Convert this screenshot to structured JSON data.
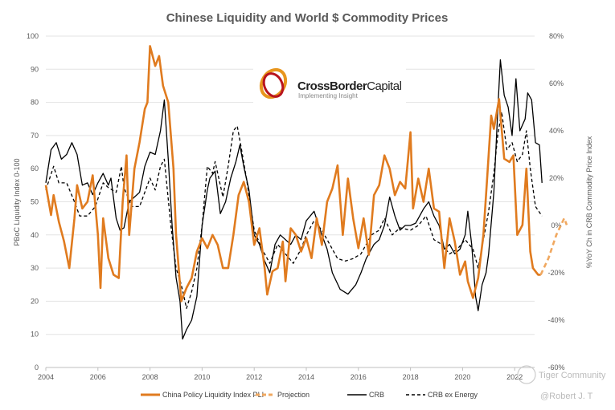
{
  "chart_data": {
    "type": "line",
    "title": "Chinese Liquidity and World $ Commodity Prices",
    "ylabel_left": "PBoC Liquidity Index 0-100",
    "ylabel_right": "%YoY Ch in CRB Commodity Price Index",
    "ylim_left": [
      0,
      100
    ],
    "ylim_right": [
      -60,
      80
    ],
    "xlim": [
      2004,
      2023.5
    ],
    "x_ticks": [
      "2004",
      "2006",
      "2008",
      "2010",
      "2012",
      "2014",
      "2016",
      "2018",
      "2020",
      "2022"
    ],
    "left_ticks": [
      "0",
      "10",
      "20",
      "30",
      "40",
      "50",
      "60",
      "70",
      "80",
      "90",
      "100"
    ],
    "right_ticks": [
      "-60%",
      "-40%",
      "-20%",
      "0%",
      "20%",
      "40%",
      "60%",
      "80%"
    ],
    "grid": true,
    "legend_position": "bottom",
    "series": [
      {
        "name": "China Policy Liquidity Index PLI",
        "axis": "left",
        "color": "#E07B1F",
        "style": "solid",
        "x": [
          2004.0,
          2004.2,
          2004.3,
          2004.5,
          2004.7,
          2004.9,
          2005.1,
          2005.2,
          2005.4,
          2005.6,
          2005.8,
          2006.0,
          2006.1,
          2006.2,
          2006.4,
          2006.6,
          2006.8,
          2006.95,
          2007.1,
          2007.2,
          2007.4,
          2007.6,
          2007.8,
          2007.9,
          2008.0,
          2008.2,
          2008.35,
          2008.5,
          2008.7,
          2008.9,
          2009.0,
          2009.2,
          2009.4,
          2009.6,
          2009.8,
          2010.0,
          2010.2,
          2010.4,
          2010.6,
          2010.8,
          2011.0,
          2011.2,
          2011.4,
          2011.6,
          2011.8,
          2012.0,
          2012.2,
          2012.4,
          2012.5,
          2012.7,
          2012.9,
          2013.1,
          2013.2,
          2013.4,
          2013.6,
          2013.8,
          2014.0,
          2014.2,
          2014.4,
          2014.6,
          2014.8,
          2015.0,
          2015.2,
          2015.4,
          2015.6,
          2015.8,
          2016.0,
          2016.2,
          2016.4,
          2016.6,
          2016.8,
          2017.0,
          2017.2,
          2017.4,
          2017.6,
          2017.8,
          2018.0,
          2018.1,
          2018.3,
          2018.5,
          2018.7,
          2018.9,
          2019.1,
          2019.3,
          2019.5,
          2019.7,
          2019.9,
          2020.1,
          2020.2,
          2020.4,
          2020.6,
          2020.8,
          2020.95,
          2021.1,
          2021.2,
          2021.4,
          2021.6,
          2021.8,
          2021.95,
          2022.1,
          2022.3,
          2022.45,
          2022.6,
          2022.7,
          2022.9,
          2023.0
        ],
        "y": [
          55,
          46,
          52,
          44,
          38,
          30,
          45,
          55,
          48,
          50,
          58,
          40,
          24,
          45,
          33,
          28,
          27,
          50,
          64,
          40,
          60,
          68,
          78,
          80,
          97,
          91,
          94,
          85,
          80,
          60,
          40,
          20,
          24,
          27,
          35,
          39,
          36,
          40,
          37,
          30,
          30,
          40,
          52,
          56,
          50,
          37,
          42,
          30,
          22,
          29,
          30,
          38,
          26,
          42,
          40,
          35,
          39,
          33,
          45,
          37,
          50,
          54,
          61,
          40,
          57,
          45,
          36,
          45,
          34,
          52,
          55,
          64,
          60,
          52,
          56,
          54,
          71,
          48,
          57,
          50,
          60,
          48,
          47,
          30,
          45,
          38,
          28,
          32,
          26,
          21,
          27,
          40,
          58,
          76,
          72,
          81,
          63,
          62,
          64,
          40,
          43,
          60,
          35,
          30,
          28,
          28
        ]
      },
      {
        "name": "Projection",
        "axis": "left",
        "color": "#F0A860",
        "style": "dashed",
        "x": [
          2023.0,
          2023.3,
          2023.6,
          2023.9,
          2024.0
        ],
        "y": [
          28,
          33,
          40,
          45,
          43
        ]
      },
      {
        "name": "CRB",
        "axis": "right",
        "color": "#000000",
        "style": "solid",
        "x": [
          2004.0,
          2004.2,
          2004.4,
          2004.6,
          2004.8,
          2005.0,
          2005.2,
          2005.4,
          2005.6,
          2005.8,
          2006.0,
          2006.2,
          2006.4,
          2006.5,
          2006.7,
          2006.85,
          2007.0,
          2007.2,
          2007.4,
          2007.6,
          2007.8,
          2008.0,
          2008.2,
          2008.4,
          2008.55,
          2008.7,
          2008.85,
          2009.0,
          2009.15,
          2009.25,
          2009.4,
          2009.6,
          2009.8,
          2010.0,
          2010.2,
          2010.3,
          2010.5,
          2010.7,
          2010.9,
          2011.1,
          2011.3,
          2011.45,
          2011.6,
          2011.8,
          2012.0,
          2012.2,
          2012.4,
          2012.6,
          2012.8,
          2013.0,
          2013.2,
          2013.4,
          2013.6,
          2013.8,
          2014.0,
          2014.3,
          2014.6,
          2014.8,
          2015.0,
          2015.3,
          2015.6,
          2015.9,
          2016.1,
          2016.3,
          2016.6,
          2016.8,
          2017.0,
          2017.2,
          2017.4,
          2017.6,
          2017.8,
          2018.0,
          2018.2,
          2018.5,
          2018.7,
          2018.9,
          2019.1,
          2019.3,
          2019.5,
          2019.7,
          2019.9,
          2020.1,
          2020.2,
          2020.35,
          2020.5,
          2020.6,
          2020.75,
          2020.9,
          2021.0,
          2021.2,
          2021.35,
          2021.45,
          2021.6,
          2021.75,
          2021.9,
          2022.05,
          2022.2,
          2022.4,
          2022.5,
          2022.65,
          2022.8,
          2022.95,
          2023.05
        ],
        "y": [
          18,
          32,
          35,
          28,
          30,
          35,
          30,
          17,
          18,
          13,
          18,
          22,
          17,
          20,
          3,
          -2,
          -1,
          10,
          12,
          14,
          25,
          31,
          30,
          40,
          53,
          28,
          0,
          -22,
          -32,
          -48,
          -44,
          -40,
          -30,
          0,
          15,
          20,
          23,
          5,
          10,
          20,
          27,
          34,
          25,
          15,
          -4,
          -8,
          -15,
          -20,
          -8,
          -4,
          -6,
          -8,
          -4,
          -6,
          2,
          6,
          -4,
          -10,
          -20,
          -27,
          -29,
          -25,
          -20,
          -14,
          -8,
          -6,
          0,
          12,
          4,
          -2,
          0,
          0,
          1,
          7,
          10,
          4,
          0,
          -10,
          -8,
          -12,
          -10,
          -4,
          6,
          -8,
          -30,
          -36,
          -25,
          -20,
          -12,
          14,
          48,
          70,
          55,
          50,
          38,
          62,
          40,
          45,
          56,
          53,
          35,
          34,
          18
        ]
      },
      {
        "name": "CRB ex Energy",
        "axis": "right",
        "color": "#000000",
        "style": "dashed",
        "x": [
          2004.0,
          2004.3,
          2004.5,
          2004.8,
          2005.1,
          2005.3,
          2005.6,
          2005.9,
          2006.2,
          2006.4,
          2006.7,
          2006.9,
          2007.0,
          2007.3,
          2007.6,
          2008.0,
          2008.2,
          2008.4,
          2008.55,
          2008.8,
          2009.0,
          2009.2,
          2009.4,
          2009.6,
          2009.8,
          2010.0,
          2010.2,
          2010.4,
          2010.5,
          2010.8,
          2011.0,
          2011.2,
          2011.35,
          2011.5,
          2011.7,
          2012.0,
          2012.3,
          2012.6,
          2012.9,
          2013.2,
          2013.5,
          2013.8,
          2014.0,
          2014.3,
          2014.6,
          2014.9,
          2015.2,
          2015.5,
          2015.8,
          2016.1,
          2016.5,
          2016.8,
          2017.0,
          2017.3,
          2017.6,
          2018.0,
          2018.3,
          2018.6,
          2018.9,
          2019.2,
          2019.5,
          2019.8,
          2020.1,
          2020.4,
          2020.6,
          2020.8,
          2021.0,
          2021.2,
          2021.35,
          2021.5,
          2021.7,
          2021.9,
          2022.1,
          2022.3,
          2022.45,
          2022.6,
          2022.8,
          2023.05
        ],
        "y": [
          15,
          25,
          18,
          18,
          10,
          4,
          4,
          8,
          18,
          16,
          14,
          25,
          16,
          8,
          8,
          20,
          15,
          25,
          28,
          0,
          -18,
          -25,
          -35,
          -28,
          -18,
          0,
          25,
          22,
          27,
          12,
          25,
          40,
          42,
          33,
          20,
          -2,
          -10,
          -16,
          -8,
          -12,
          -16,
          -10,
          -4,
          2,
          -2,
          -8,
          -14,
          -15,
          -14,
          -12,
          -4,
          -2,
          3,
          -4,
          -1,
          -2,
          0,
          4,
          -6,
          -8,
          -12,
          -10,
          -6,
          -10,
          -18,
          -6,
          6,
          22,
          38,
          48,
          32,
          35,
          27,
          30,
          40,
          24,
          8,
          4
        ]
      }
    ]
  },
  "logo": {
    "name": "CrossBorder",
    "name2": "Capital",
    "tagline": "Implementing Insight"
  },
  "watermark": {
    "community": "Tiger Community",
    "author": "@Robert J. T"
  }
}
